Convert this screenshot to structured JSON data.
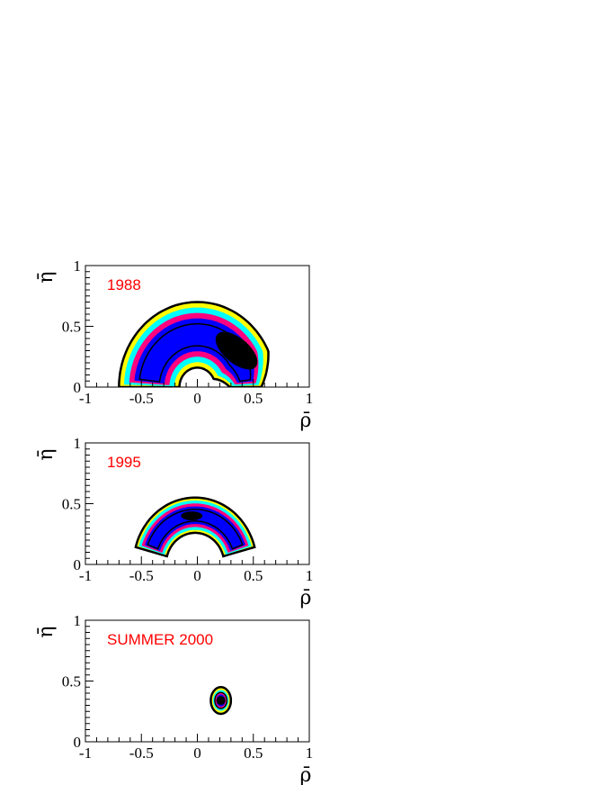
{
  "chart_data": [
    {
      "type": "contour",
      "annotation": "1988",
      "xlabel": "ρ̄",
      "ylabel": "η̄",
      "xlim": [
        -1,
        1
      ],
      "ylim": [
        0,
        1
      ],
      "xticks": [
        "-1",
        "-0.5",
        "0",
        "0.5",
        "1"
      ],
      "yticks": [
        "0",
        "0.5",
        "1"
      ],
      "region": {
        "kind": "arc",
        "center": [
          0.0,
          0.0
        ],
        "r_inner": 0.16,
        "r_outer": 0.7,
        "angle_start": 0,
        "angle_end": 180,
        "end_theta": 25,
        "end_rho_min": 0.52
      },
      "core": {
        "center": [
          0.35,
          0.3
        ]
      }
    },
    {
      "type": "contour",
      "annotation": "1995",
      "xlabel": "ρ̄",
      "ylabel": "η̄",
      "xlim": [
        -1,
        1
      ],
      "ylim": [
        0,
        1
      ],
      "xticks": [
        "-1",
        "-0.5",
        "0",
        "0.5",
        "1"
      ],
      "yticks": [
        "0",
        "0.5",
        "1"
      ],
      "region": {
        "kind": "arc",
        "center": [
          -0.02,
          0.0
        ],
        "r_inner": 0.26,
        "r_outer": 0.55,
        "angle_start": 15,
        "angle_end": 165
      },
      "core": {
        "center": [
          -0.05,
          0.4
        ]
      }
    },
    {
      "type": "contour",
      "annotation": "SUMMER 2000",
      "xlabel": "ρ̄",
      "ylabel": "η̄",
      "xlim": [
        -1,
        1
      ],
      "ylim": [
        0,
        1
      ],
      "xticks": [
        "-1",
        "-0.5",
        "0",
        "0.5",
        "1"
      ],
      "yticks": [
        "0",
        "0.5",
        "1"
      ],
      "region": {
        "kind": "ellipse",
        "center": [
          0.21,
          0.34
        ],
        "rx": 0.09,
        "ry": 0.11
      },
      "core": {
        "center": [
          0.21,
          0.34
        ]
      }
    }
  ],
  "colors": {
    "band_1": "#ffff00",
    "band_2": "#00ffff",
    "band_3": "#ff0080",
    "band_4": "#0000ff",
    "core": "#000000",
    "annotation": "#ff0000"
  }
}
